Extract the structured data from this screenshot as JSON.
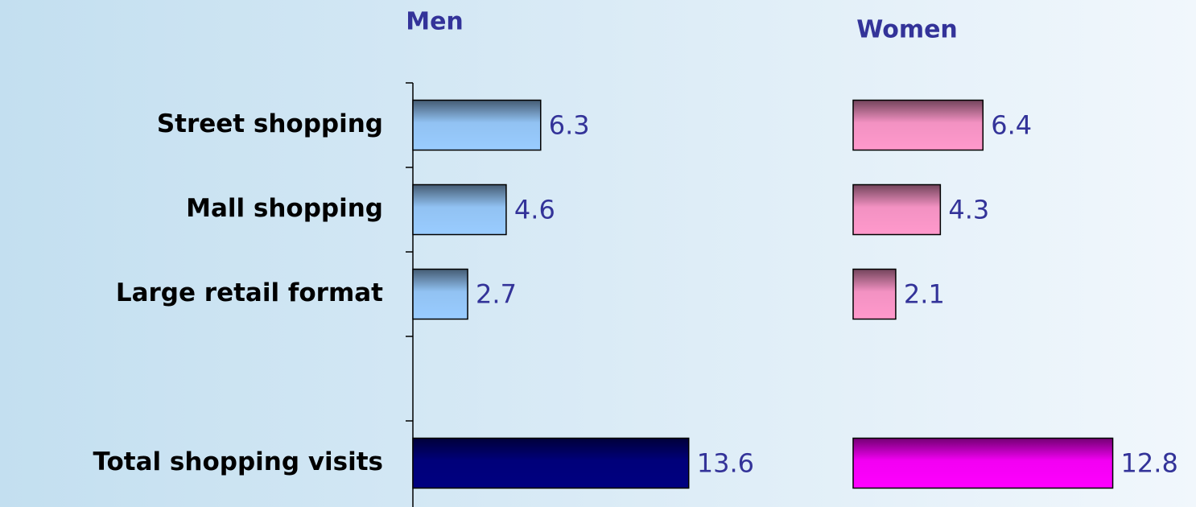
{
  "chart_data": [
    {
      "type": "bar",
      "orientation": "horizontal",
      "title": "Men",
      "categories": [
        "Street shopping",
        "Mall shopping",
        "Large retail format",
        null,
        "Total shopping visits"
      ],
      "values": [
        6.3,
        4.6,
        2.7,
        null,
        13.6
      ],
      "colors": [
        "#99ccff",
        "#99ccff",
        "#99ccff",
        null,
        "#000080"
      ]
    },
    {
      "type": "bar",
      "orientation": "horizontal",
      "title": "Women",
      "values": [
        6.4,
        4.3,
        2.1,
        null,
        12.8
      ],
      "colors": [
        "#ff99cc",
        "#ff99cc",
        "#ff99cc",
        null,
        "#ff00ff"
      ]
    }
  ]
}
